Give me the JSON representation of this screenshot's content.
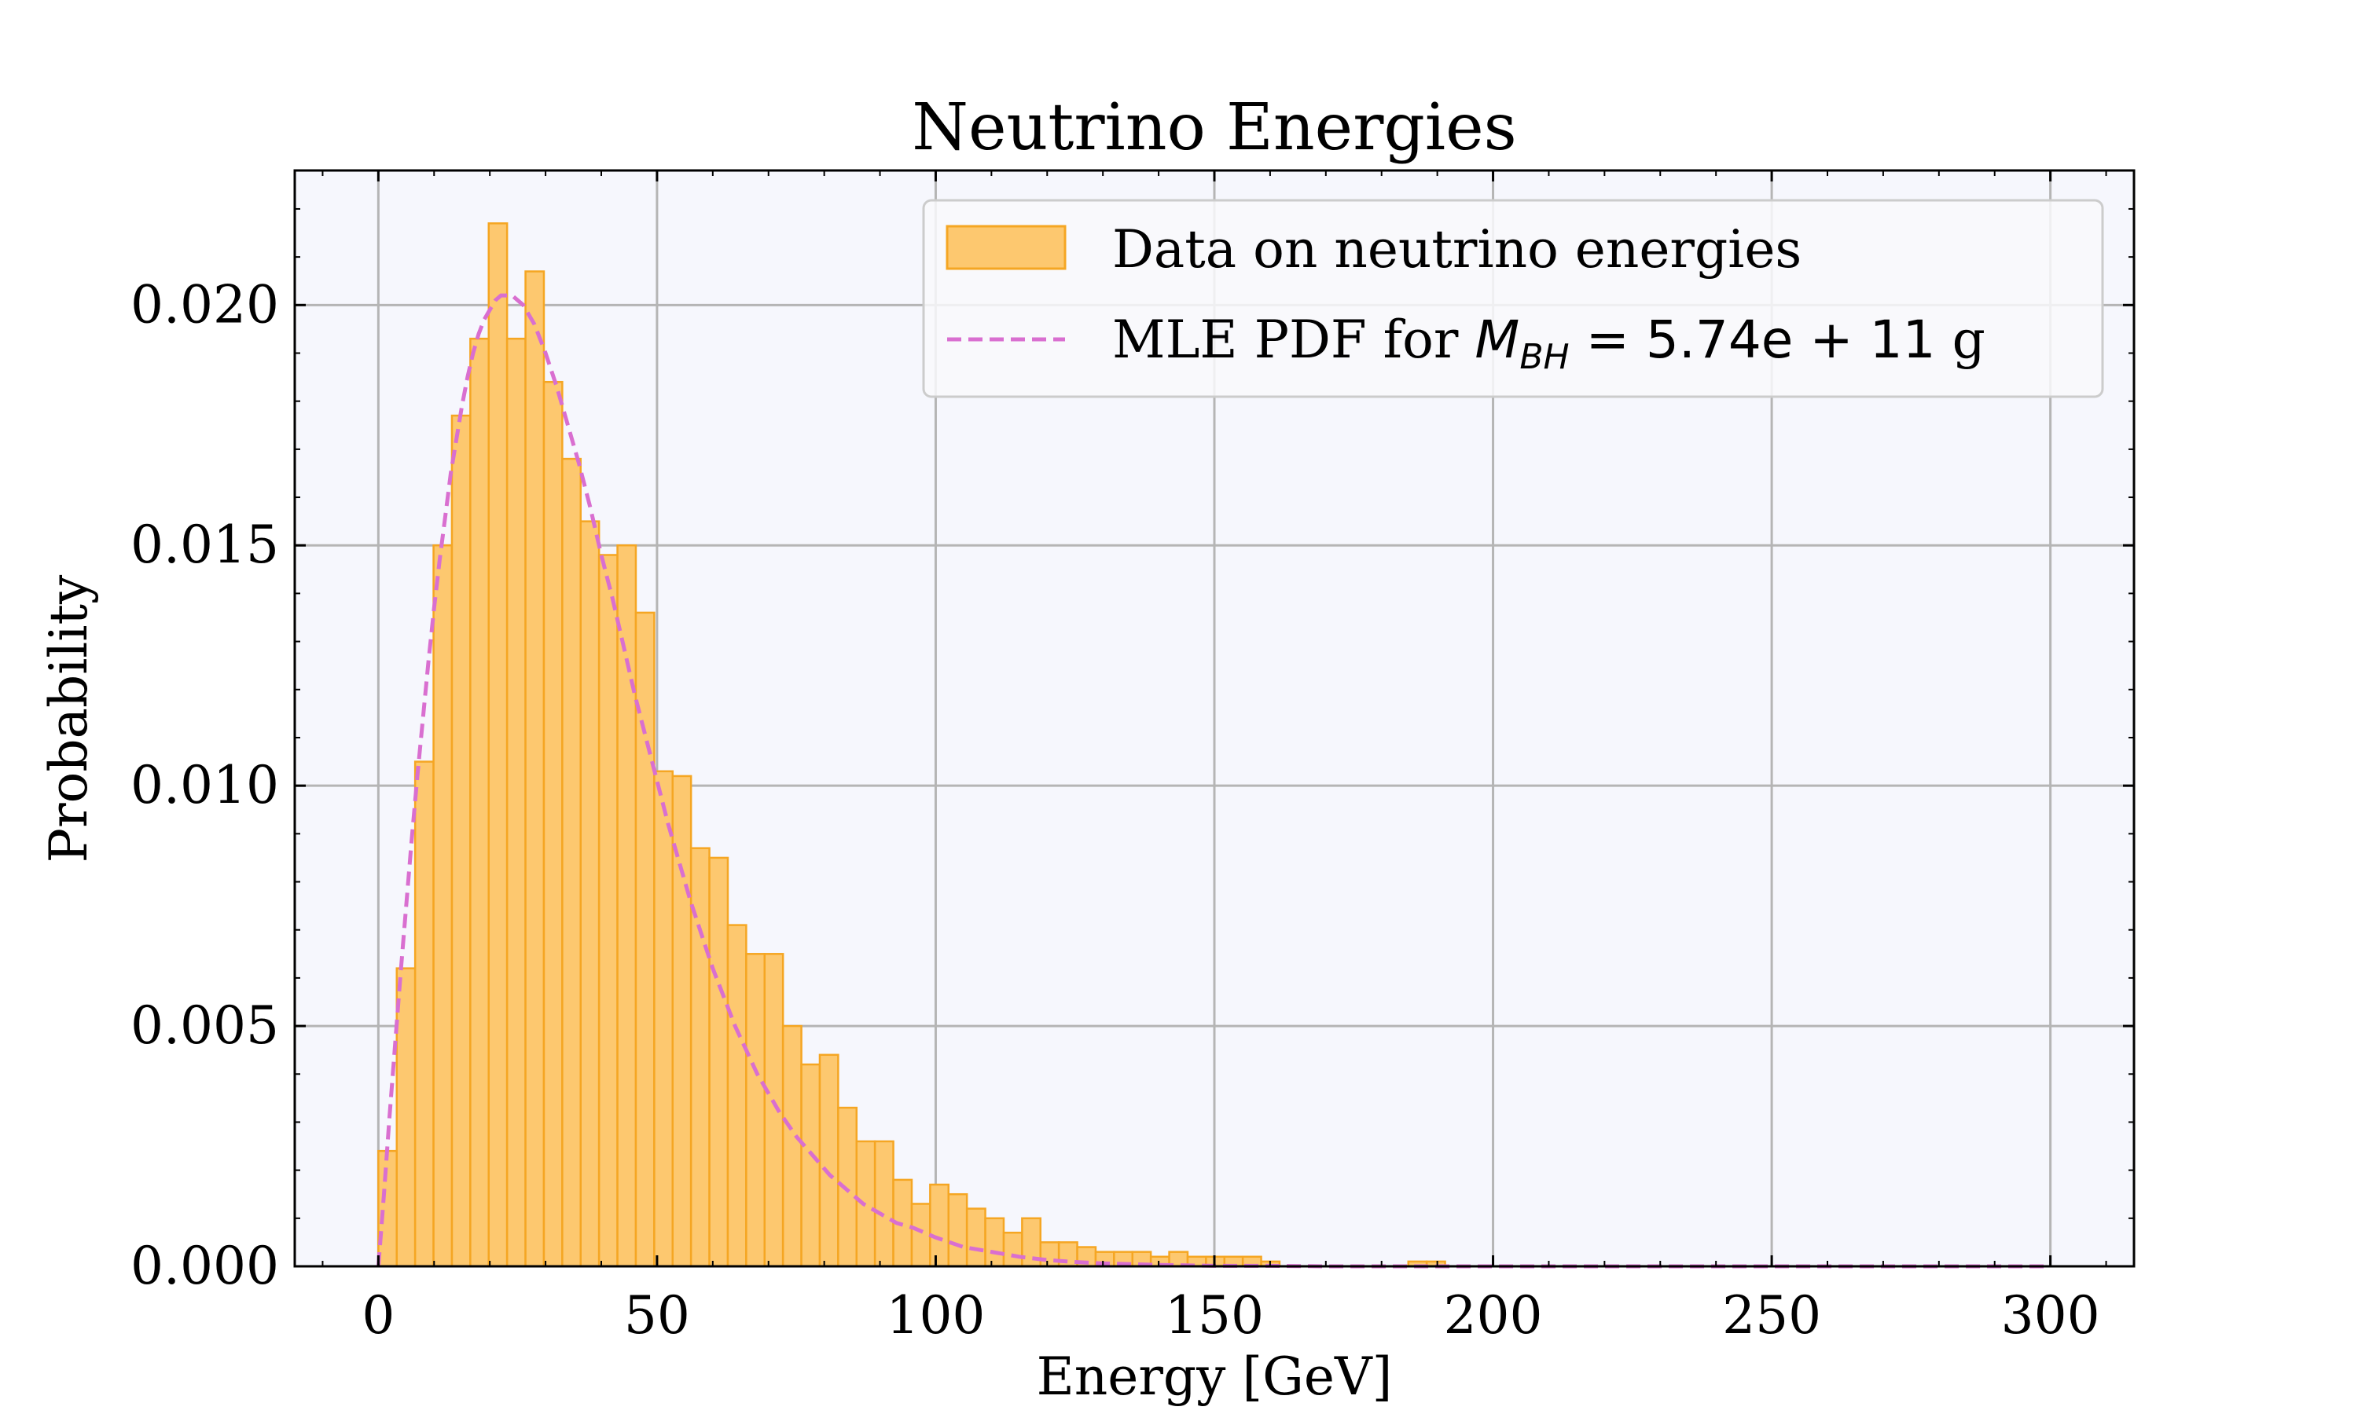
{
  "chart_data": {
    "type": "bar",
    "title": "Neutrino Energies",
    "xlabel": "Energy [GeV]",
    "ylabel": "Probability",
    "xlim": [
      -15,
      315
    ],
    "ylim": [
      0,
      0.0228
    ],
    "xticks": [
      0,
      50,
      100,
      150,
      200,
      250,
      300
    ],
    "yticks": [
      0.0,
      0.005,
      0.01,
      0.015,
      0.02
    ],
    "ytick_labels": [
      "0.000",
      "0.005",
      "0.010",
      "0.015",
      "0.020"
    ],
    "xtick_labels": [
      "0",
      "50",
      "100",
      "150",
      "200",
      "250",
      "300"
    ],
    "grid": true,
    "legend_position": "top-right",
    "colors": {
      "bar_fill": "#fdc86f",
      "bar_edge": "#f5a623",
      "pdf_line": "#d96fd0",
      "plot_bg": "#f6f7fd",
      "grid": "#b5b5b5"
    },
    "histogram": {
      "name": "Data on neutrino energies",
      "bin_width": 3.3,
      "bin_start": 0,
      "values": [
        0.0024,
        0.0062,
        0.0105,
        0.015,
        0.0177,
        0.0193,
        0.0217,
        0.0193,
        0.0207,
        0.0184,
        0.0168,
        0.0155,
        0.0148,
        0.015,
        0.0136,
        0.0103,
        0.0102,
        0.0087,
        0.0085,
        0.0071,
        0.0065,
        0.0065,
        0.005,
        0.0042,
        0.0044,
        0.0033,
        0.0026,
        0.0026,
        0.0018,
        0.0013,
        0.0017,
        0.0015,
        0.0012,
        0.001,
        0.0007,
        0.001,
        0.0005,
        0.0005,
        0.0004,
        0.0003,
        0.0003,
        0.0003,
        0.0002,
        0.0003,
        0.0002,
        0.0002,
        0.0002,
        0.0002,
        0.0001,
        0.0,
        0.0,
        0.0,
        0.0,
        0.0,
        0.0,
        0.0,
        0.0001,
        0.0001,
        0.0,
        0.0,
        0.0,
        0.0,
        0.0,
        0.0,
        0.0,
        0.0,
        0.0,
        0.0,
        0.0,
        0.0,
        0.0,
        0.0,
        0.0,
        0.0,
        0.0,
        0.0,
        0.0,
        0.0,
        0.0,
        0.0,
        0.0,
        0.0,
        0.0,
        0.0,
        0.0,
        0.0,
        0.0,
        0.0,
        0.0,
        0.0
      ]
    },
    "pdf": {
      "name_prefix": "MLE PDF for ",
      "name_math": "M",
      "name_subscript": "BH",
      "name_value": " = 5.74e + 11",
      "name_suffix": " g",
      "x": [
        0,
        1,
        2,
        3,
        4,
        5,
        6,
        7,
        8,
        9,
        10,
        11,
        12,
        13,
        14,
        15,
        16,
        17,
        18,
        19,
        20,
        21,
        22,
        23,
        24,
        25,
        26,
        27,
        28,
        29,
        30,
        32,
        34,
        36,
        38,
        40,
        42,
        44,
        46,
        48,
        50,
        52,
        54,
        56,
        58,
        60,
        62,
        64,
        66,
        68,
        70,
        72,
        75,
        78,
        81,
        84,
        87,
        90,
        93,
        96,
        100,
        105,
        110,
        115,
        120,
        125,
        130,
        140,
        150,
        160,
        170,
        180,
        200,
        220,
        240,
        260,
        280,
        300
      ],
      "y": [
        0.0,
        0.0015,
        0.0031,
        0.0046,
        0.0061,
        0.0075,
        0.0089,
        0.0102,
        0.0114,
        0.0126,
        0.0137,
        0.0147,
        0.0156,
        0.0165,
        0.0172,
        0.0179,
        0.0185,
        0.019,
        0.0194,
        0.0197,
        0.0199,
        0.0201,
        0.0202,
        0.0202,
        0.0202,
        0.0201,
        0.02,
        0.0198,
        0.0196,
        0.0193,
        0.019,
        0.0183,
        0.0175,
        0.0167,
        0.0158,
        0.0148,
        0.0139,
        0.0129,
        0.0119,
        0.011,
        0.0101,
        0.0092,
        0.0084,
        0.0076,
        0.0069,
        0.0062,
        0.0056,
        0.005,
        0.0045,
        0.004,
        0.0036,
        0.0032,
        0.0027,
        0.0023,
        0.0019,
        0.0016,
        0.0013,
        0.0011,
        0.0009,
        0.0008,
        0.0006,
        0.0004,
        0.0003,
        0.0002,
        0.00013,
        9e-05,
        6e-05,
        3e-05,
        1e-05,
        1e-05,
        0.0,
        0.0,
        0.0,
        0.0,
        0.0,
        0.0,
        0.0,
        0.0
      ]
    }
  }
}
